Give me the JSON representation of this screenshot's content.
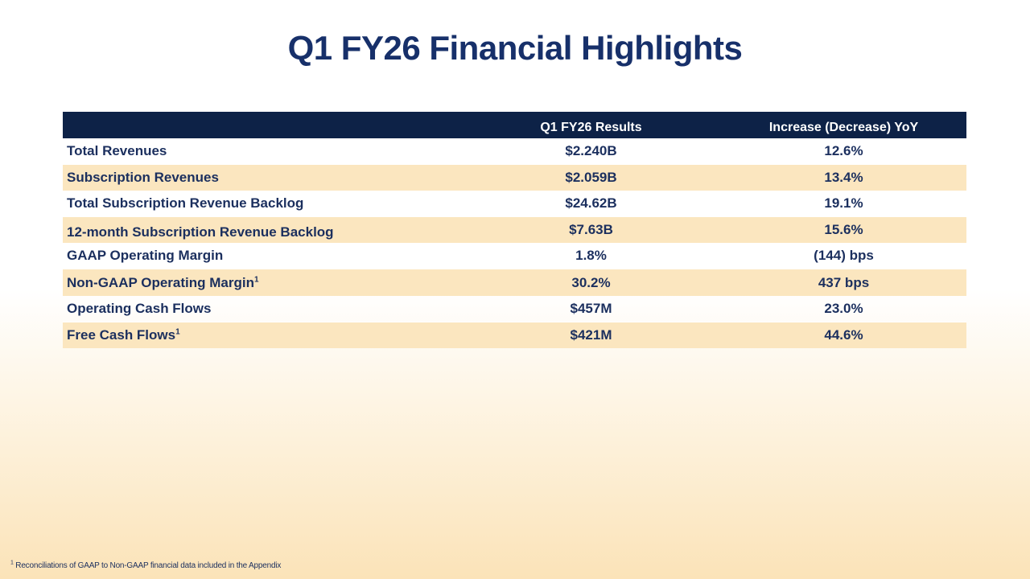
{
  "slide": {
    "title": "Q1 FY26 Financial Highlights"
  },
  "table": {
    "headers": [
      "",
      "Q1 FY26 Results",
      "Increase (Decrease) YoY"
    ],
    "rows": [
      {
        "label": "Total Revenues",
        "sup": "",
        "result": "$2.240B",
        "yoy": "12.6%",
        "shaded": false
      },
      {
        "label": "Subscription Revenues",
        "sup": "",
        "result": "$2.059B",
        "yoy": "13.4%",
        "shaded": true
      },
      {
        "label": "Total Subscription Revenue Backlog",
        "sup": "",
        "result": "$24.62B",
        "yoy": "19.1%",
        "shaded": false
      },
      {
        "label": "12-month Subscription Revenue Backlog",
        "sup": "",
        "result": "$7.63B",
        "yoy": "15.6%",
        "shaded": true
      },
      {
        "label": "GAAP Operating Margin",
        "sup": "",
        "result": "1.8%",
        "yoy": "(144) bps",
        "shaded": false
      },
      {
        "label": "Non-GAAP Operating Margin",
        "sup": "1",
        "result": "30.2%",
        "yoy": "437 bps",
        "shaded": true
      },
      {
        "label": "Operating Cash Flows",
        "sup": "",
        "result": "$457M",
        "yoy": "23.0%",
        "shaded": false
      },
      {
        "label": "Free Cash Flows",
        "sup": "1",
        "result": "$421M",
        "yoy": "44.6%",
        "shaded": true
      }
    ]
  },
  "footnote": {
    "marker": "1",
    "text": "Reconciliations of GAAP to Non-GAAP financial data included in the Appendix"
  },
  "colors": {
    "title": "#17306a",
    "header_bg": "#0d2247",
    "row_shade": "#fbe6bf",
    "text": "#1b2f5e"
  }
}
